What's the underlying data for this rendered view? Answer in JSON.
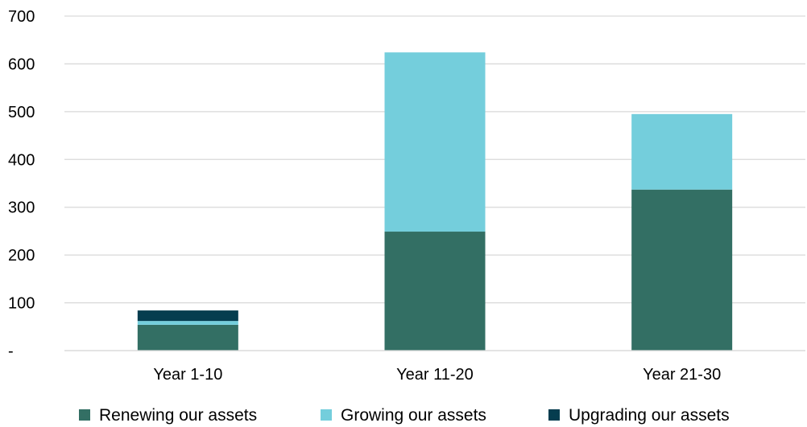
{
  "chart_data": {
    "type": "bar",
    "stacked": true,
    "title": "",
    "xlabel": "",
    "ylabel": "",
    "categories": [
      "Year 1-10",
      "Year 11-20",
      "Year 21-30"
    ],
    "series": [
      {
        "name": "Renewing our assets",
        "color": "#336F64",
        "values": [
          54,
          249,
          337
        ]
      },
      {
        "name": "Growing our assets",
        "color": "#74CEDC",
        "values": [
          8,
          375,
          158
        ]
      },
      {
        "name": "Upgrading our assets",
        "color": "#053D4F",
        "values": [
          22,
          0,
          0
        ]
      }
    ],
    "ylim": [
      0,
      700
    ],
    "yticks": [
      0,
      100,
      200,
      300,
      400,
      500,
      600,
      700
    ],
    "ytick_labels": [
      "-",
      "100",
      "200",
      "300",
      "400",
      "500",
      "600",
      "700"
    ],
    "grid": true,
    "legend_position": "bottom"
  }
}
